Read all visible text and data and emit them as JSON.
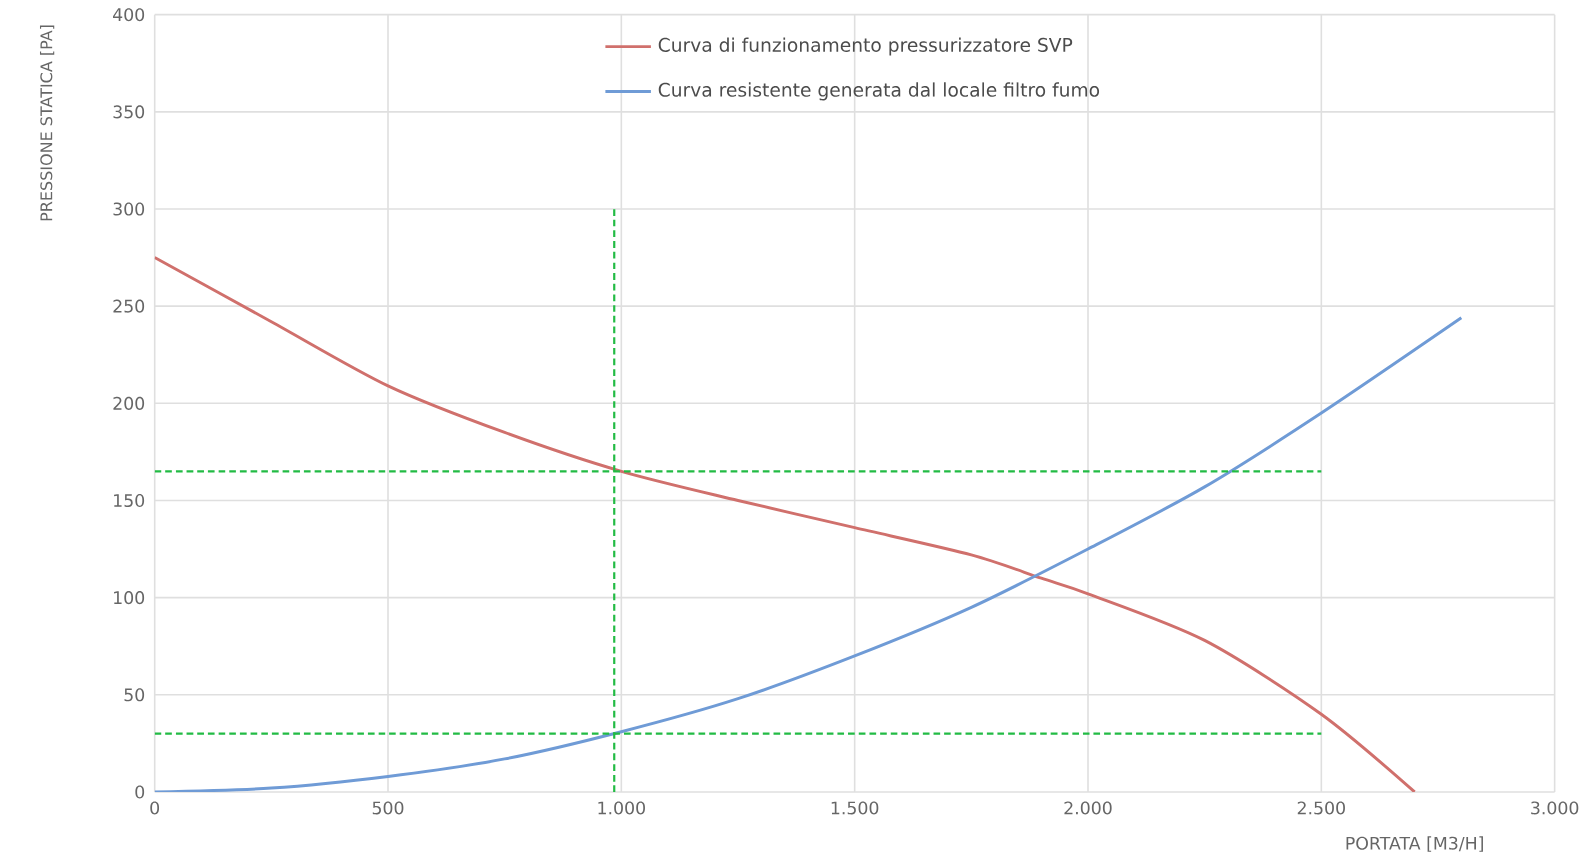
{
  "chart_data": {
    "type": "line",
    "xlabel": "PORTATA [M3/H]",
    "ylabel": "PRESSIONE STATICA [PA]",
    "xlim": [
      0,
      3000
    ],
    "ylim": [
      0,
      400
    ],
    "xticks": [
      0,
      500,
      {
        "value": 1000,
        "label": "1.000"
      },
      {
        "value": 1500,
        "label": "1.500"
      },
      {
        "value": 2000,
        "label": "2.000"
      },
      {
        "value": 2500,
        "label": "2.500"
      },
      {
        "value": 3000,
        "label": "3.000"
      }
    ],
    "yticks": [
      0,
      50,
      100,
      150,
      200,
      250,
      300,
      350,
      400
    ],
    "grid": true,
    "legend": "top",
    "marker": "none",
    "series": [
      {
        "name": "Curva di funzionamento pressurizzatore SVP",
        "color": "#d0706c",
        "line_style": "solid",
        "x": [
          0,
          250,
          500,
          750,
          1000,
          1250,
          1500,
          1750,
          1900,
          2000,
          2250,
          2500,
          2700
        ],
        "values": [
          275,
          242,
          209,
          185,
          165,
          150,
          136,
          122,
          110,
          102,
          78,
          40,
          0
        ]
      },
      {
        "name": "Curva resistente generata dal locale filtro fumo",
        "color": "#6f9bd6",
        "line_style": "solid",
        "x": [
          0,
          250,
          500,
          750,
          1000,
          1250,
          1500,
          1750,
          2000,
          2250,
          2500,
          2800
        ],
        "values": [
          0,
          2,
          8,
          17,
          31,
          48,
          70,
          95,
          125,
          157,
          195,
          244
        ]
      },
      {
        "color": "#22bb44",
        "line_style": "dashed",
        "x": [
          0,
          2500
        ],
        "values": [
          165,
          165
        ]
      },
      {
        "color": "#22bb44",
        "line_style": "dashed",
        "x": [
          0,
          2500
        ],
        "values": [
          30,
          30
        ]
      },
      {
        "color": "#22bb44",
        "line_style": "dashed",
        "x": [
          985,
          985
        ],
        "values": [
          0,
          300
        ]
      }
    ]
  }
}
